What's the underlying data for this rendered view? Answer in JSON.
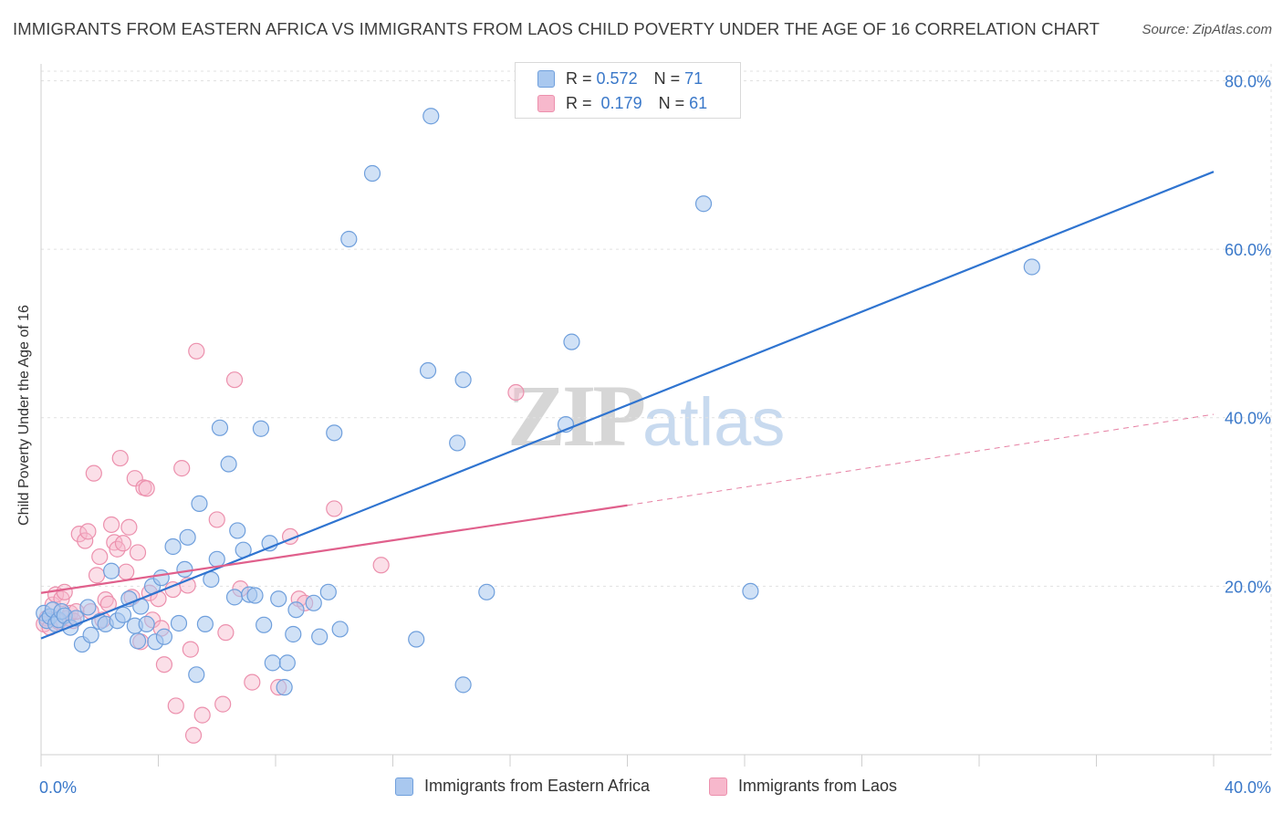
{
  "title": "IMMIGRANTS FROM EASTERN AFRICA VS IMMIGRANTS FROM LAOS CHILD POVERTY UNDER THE AGE OF 16 CORRELATION CHART",
  "source": "Source: ZipAtlas.com",
  "watermark": {
    "zip": "ZIP",
    "atlas": "atlas"
  },
  "legend_top": [
    {
      "r_label": "R =",
      "r_value": "0.572",
      "n_label": "N =",
      "n_value": "71"
    },
    {
      "r_label": "R =",
      "r_value": "0.179",
      "n_label": "N =",
      "n_value": "61"
    }
  ],
  "colors": {
    "series_a_fill": "#a9c8ef",
    "series_a_stroke": "#6f9fdc",
    "series_a_line": "#2f74d0",
    "series_b_fill": "#f7b8cc",
    "series_b_stroke": "#ec90ad",
    "series_b_line": "#e0608c",
    "axis_label": "#3a78c9",
    "grid": "#e1e1e1"
  },
  "chart_data": {
    "type": "scatter",
    "title": "IMMIGRANTS FROM EASTERN AFRICA VS IMMIGRANTS FROM LAOS CHILD POVERTY UNDER THE AGE OF 16 CORRELATION CHART",
    "xlabel": "",
    "ylabel": "Child Poverty Under the Age of 16",
    "xlim": [
      0,
      40
    ],
    "ylim": [
      0,
      82
    ],
    "x_ticks": [
      "0.0%",
      "40.0%"
    ],
    "y_ticks": [
      {
        "value": 20,
        "label": "20.0%"
      },
      {
        "value": 40,
        "label": "40.0%"
      },
      {
        "value": 60,
        "label": "60.0%"
      },
      {
        "value": 80,
        "label": "80.0%"
      }
    ],
    "grid": true,
    "legend_position": "bottom",
    "series": [
      {
        "name": "Immigrants from Eastern Africa",
        "r": 0.572,
        "n": 71,
        "trend": {
          "x": [
            0,
            40
          ],
          "y": [
            13.8,
            69.2
          ]
        },
        "points": [
          [
            0.1,
            16.8
          ],
          [
            0.2,
            15.9
          ],
          [
            0.3,
            16.4
          ],
          [
            0.4,
            17.2
          ],
          [
            0.5,
            15.5
          ],
          [
            0.6,
            16.0
          ],
          [
            0.7,
            17.0
          ],
          [
            0.8,
            16.5
          ],
          [
            1.0,
            15.1
          ],
          [
            1.2,
            16.2
          ],
          [
            1.4,
            13.1
          ],
          [
            1.6,
            17.5
          ],
          [
            1.7,
            14.2
          ],
          [
            2.0,
            15.8
          ],
          [
            2.2,
            15.5
          ],
          [
            2.4,
            21.8
          ],
          [
            2.6,
            15.9
          ],
          [
            2.8,
            16.6
          ],
          [
            3.0,
            18.5
          ],
          [
            3.2,
            15.3
          ],
          [
            3.3,
            13.5
          ],
          [
            3.4,
            17.6
          ],
          [
            3.6,
            15.5
          ],
          [
            3.8,
            20.0
          ],
          [
            3.9,
            13.4
          ],
          [
            4.1,
            21.0
          ],
          [
            4.2,
            14.0
          ],
          [
            4.5,
            24.7
          ],
          [
            4.7,
            15.6
          ],
          [
            4.9,
            22.0
          ],
          [
            5.0,
            25.8
          ],
          [
            5.3,
            9.5
          ],
          [
            5.4,
            29.8
          ],
          [
            5.6,
            15.5
          ],
          [
            5.8,
            20.8
          ],
          [
            6.0,
            23.2
          ],
          [
            6.1,
            38.8
          ],
          [
            6.4,
            34.5
          ],
          [
            6.6,
            18.7
          ],
          [
            6.7,
            26.6
          ],
          [
            6.9,
            24.3
          ],
          [
            7.1,
            19.0
          ],
          [
            7.3,
            18.9
          ],
          [
            7.5,
            38.7
          ],
          [
            7.6,
            15.4
          ],
          [
            7.8,
            25.1
          ],
          [
            7.9,
            10.9
          ],
          [
            8.1,
            18.5
          ],
          [
            8.3,
            8.0
          ],
          [
            8.4,
            10.9
          ],
          [
            8.6,
            14.3
          ],
          [
            8.7,
            17.2
          ],
          [
            9.3,
            18.0
          ],
          [
            9.5,
            14.0
          ],
          [
            9.8,
            19.3
          ],
          [
            10.0,
            38.2
          ],
          [
            10.2,
            14.9
          ],
          [
            10.5,
            61.2
          ],
          [
            11.3,
            69.0
          ],
          [
            12.8,
            13.7
          ],
          [
            13.2,
            45.6
          ],
          [
            13.3,
            75.8
          ],
          [
            14.2,
            37.0
          ],
          [
            14.4,
            44.5
          ],
          [
            14.4,
            8.3
          ],
          [
            15.2,
            19.3
          ],
          [
            17.9,
            39.2
          ],
          [
            18.1,
            49.0
          ],
          [
            22.6,
            65.4
          ],
          [
            24.2,
            19.4
          ],
          [
            33.8,
            57.9
          ]
        ]
      },
      {
        "name": "Immigrants from Laos",
        "r": 0.179,
        "n": 61,
        "trend": {
          "x": [
            0,
            20
          ],
          "y": [
            19.2,
            29.6
          ]
        },
        "trend_extension": {
          "x": [
            20,
            40
          ],
          "y": [
            29.6,
            40.4
          ]
        },
        "points": [
          [
            0.1,
            15.5
          ],
          [
            0.2,
            16.2
          ],
          [
            0.3,
            15.1
          ],
          [
            0.4,
            17.8
          ],
          [
            0.5,
            19.0
          ],
          [
            0.6,
            15.8
          ],
          [
            0.7,
            18.5
          ],
          [
            0.8,
            19.3
          ],
          [
            0.9,
            16.2
          ],
          [
            1.0,
            16.8
          ],
          [
            1.1,
            15.9
          ],
          [
            1.2,
            17.0
          ],
          [
            1.3,
            26.2
          ],
          [
            1.5,
            25.4
          ],
          [
            1.6,
            26.5
          ],
          [
            1.7,
            17.0
          ],
          [
            1.8,
            33.4
          ],
          [
            1.9,
            21.3
          ],
          [
            2.0,
            23.5
          ],
          [
            2.1,
            16.0
          ],
          [
            2.2,
            18.4
          ],
          [
            2.3,
            17.9
          ],
          [
            2.4,
            27.3
          ],
          [
            2.5,
            25.2
          ],
          [
            2.6,
            24.4
          ],
          [
            2.7,
            35.2
          ],
          [
            2.8,
            25.1
          ],
          [
            2.9,
            21.7
          ],
          [
            3.0,
            27.0
          ],
          [
            3.1,
            18.7
          ],
          [
            3.2,
            32.8
          ],
          [
            3.3,
            24.0
          ],
          [
            3.4,
            13.4
          ],
          [
            3.5,
            31.7
          ],
          [
            3.6,
            31.6
          ],
          [
            3.7,
            19.2
          ],
          [
            3.8,
            16.0
          ],
          [
            4.0,
            18.5
          ],
          [
            4.1,
            15.0
          ],
          [
            4.2,
            10.7
          ],
          [
            4.5,
            19.6
          ],
          [
            4.6,
            5.8
          ],
          [
            4.8,
            34.0
          ],
          [
            5.0,
            20.1
          ],
          [
            5.1,
            12.5
          ],
          [
            5.2,
            2.3
          ],
          [
            5.3,
            47.9
          ],
          [
            5.5,
            4.7
          ],
          [
            6.0,
            27.9
          ],
          [
            6.2,
            6.0
          ],
          [
            6.3,
            14.5
          ],
          [
            6.6,
            44.5
          ],
          [
            6.8,
            19.7
          ],
          [
            7.2,
            8.6
          ],
          [
            8.1,
            8.0
          ],
          [
            8.5,
            25.9
          ],
          [
            8.8,
            18.5
          ],
          [
            9.0,
            18.0
          ],
          [
            10.0,
            29.2
          ],
          [
            11.6,
            22.5
          ],
          [
            16.2,
            43.0
          ]
        ]
      }
    ]
  },
  "legend_bottom": [
    {
      "label": "Immigrants from Eastern Africa"
    },
    {
      "label": "Immigrants from Laos"
    }
  ]
}
